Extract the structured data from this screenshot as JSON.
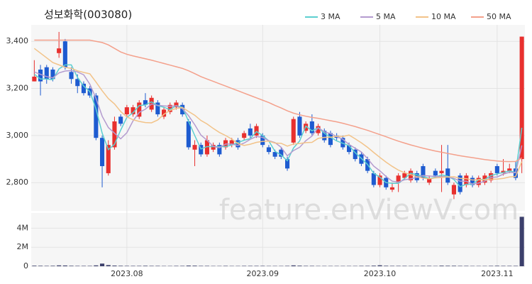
{
  "chart_data": [
    {
      "type": "candlestick",
      "title": "성보화학(003080)",
      "watermark": "feature.enViewV.com",
      "categories": [
        null,
        null,
        null,
        null,
        null,
        null,
        null,
        null,
        null,
        null,
        null,
        null,
        null,
        null,
        null,
        "2023.08",
        null,
        null,
        null,
        null,
        null,
        null,
        null,
        null,
        null,
        null,
        null,
        null,
        null,
        null,
        null,
        null,
        null,
        null,
        null,
        null,
        null,
        "2023.09",
        null,
        null,
        null,
        null,
        null,
        null,
        null,
        null,
        null,
        null,
        null,
        null,
        null,
        null,
        null,
        null,
        null,
        null,
        "2023.10",
        null,
        null,
        null,
        null,
        null,
        null,
        null,
        null,
        null,
        null,
        null,
        null,
        null,
        null,
        null,
        null,
        null,
        null,
        "2023.11",
        null,
        null,
        null,
        null
      ],
      "open": [
        3230,
        3280,
        3290,
        3280,
        3350,
        3400,
        3270,
        3240,
        3220,
        3200,
        3170,
        2990,
        2840,
        2950,
        3080,
        3090,
        3090,
        3080,
        3150,
        3110,
        3140,
        3080,
        3100,
        3120,
        3130,
        3060,
        2940,
        2960,
        2920,
        2940,
        2960,
        2950,
        2960,
        2980,
        2990,
        3030,
        3000,
        3000,
        2950,
        2930,
        2940,
        2900,
        2970,
        3080,
        3020,
        3060,
        3010,
        3020,
        3010,
        3000,
        2990,
        2960,
        2940,
        2920,
        2900,
        2840,
        2790,
        2820,
        2770,
        2800,
        2820,
        2810,
        2840,
        2870,
        2800,
        2850,
        2840,
        2860,
        2750,
        2830,
        2790,
        2820,
        2790,
        2800,
        2810,
        2870,
        2840,
        2850,
        2860,
        2900
      ],
      "high": [
        3320,
        3300,
        3300,
        3290,
        3440,
        3410,
        3290,
        3260,
        3230,
        3210,
        3180,
        3000,
        2980,
        3080,
        3090,
        3130,
        3130,
        3150,
        3180,
        3170,
        3150,
        3120,
        3140,
        3150,
        3140,
        3070,
        2980,
        2970,
        3000,
        2970,
        2970,
        2990,
        2990,
        2990,
        3020,
        3050,
        3050,
        3010,
        2960,
        2940,
        2950,
        2910,
        3080,
        3100,
        3060,
        3090,
        3050,
        3030,
        3020,
        3010,
        3000,
        2970,
        2950,
        2930,
        2910,
        2850,
        2840,
        2830,
        2800,
        2840,
        2850,
        2860,
        2850,
        2880,
        2830,
        2860,
        2960,
        2960,
        2800,
        2840,
        2840,
        2830,
        2830,
        2840,
        2850,
        2880,
        2900,
        2880,
        2890,
        3420
      ],
      "low": [
        3230,
        3170,
        3220,
        3230,
        3330,
        3280,
        3220,
        3180,
        3170,
        3160,
        2980,
        2780,
        2830,
        2940,
        3040,
        3080,
        3080,
        3070,
        3120,
        3100,
        3080,
        3070,
        3090,
        3110,
        3080,
        2940,
        2870,
        2910,
        2910,
        2930,
        2910,
        2940,
        2950,
        2940,
        2980,
        2990,
        2990,
        2950,
        2920,
        2900,
        2900,
        2850,
        2960,
        2990,
        3010,
        3000,
        3000,
        2970,
        2950,
        2980,
        2940,
        2920,
        2890,
        2870,
        2840,
        2780,
        2780,
        2770,
        2760,
        2760,
        2810,
        2800,
        2800,
        2810,
        2790,
        2820,
        2760,
        2790,
        2730,
        2750,
        2780,
        2780,
        2780,
        2790,
        2800,
        2830,
        2830,
        2840,
        2810,
        2840
      ],
      "close": [
        3250,
        3230,
        3240,
        3240,
        3370,
        3290,
        3240,
        3210,
        3180,
        3170,
        2990,
        2870,
        2960,
        3060,
        3050,
        3120,
        3120,
        3140,
        3130,
        3160,
        3090,
        3110,
        3130,
        3140,
        3090,
        2950,
        2960,
        2920,
        2980,
        2960,
        2920,
        2980,
        2980,
        2950,
        3010,
        3000,
        3040,
        2960,
        2930,
        2910,
        2910,
        2860,
        3070,
        3000,
        3050,
        3010,
        3040,
        2980,
        2960,
        2990,
        2950,
        2930,
        2900,
        2880,
        2850,
        2790,
        2830,
        2780,
        2780,
        2830,
        2840,
        2850,
        2810,
        2820,
        2820,
        2830,
        2850,
        2800,
        2790,
        2760,
        2830,
        2790,
        2820,
        2830,
        2840,
        2840,
        2850,
        2860,
        2820,
        3420
      ],
      "up_color": "#e8302e",
      "down_color": "#1e5bd0",
      "series": [
        {
          "name": "3 MA",
          "color": "#5ccfd0",
          "values": [
            3260,
            3240,
            3240,
            3237,
            3283,
            3300,
            3300,
            3247,
            3210,
            3187,
            3113,
            3010,
            2940,
            2963,
            3023,
            3077,
            3097,
            3127,
            3130,
            3143,
            3127,
            3120,
            3110,
            3127,
            3120,
            3060,
            3000,
            2943,
            2953,
            2953,
            2953,
            2953,
            2960,
            2970,
            2980,
            2987,
            3017,
            3000,
            2977,
            2933,
            2917,
            2893,
            2947,
            2977,
            3040,
            3020,
            3033,
            3010,
            2993,
            2977,
            2967,
            2957,
            2927,
            2903,
            2877,
            2840,
            2823,
            2800,
            2797,
            2797,
            2817,
            2840,
            2833,
            2827,
            2817,
            2823,
            2833,
            2827,
            2813,
            2783,
            2793,
            2793,
            2813,
            2813,
            2830,
            2837,
            2843,
            2850,
            2843,
            3033
          ]
        },
        {
          "name": "5 MA",
          "color": "#b49bcf",
          "values": [
            3270,
            3260,
            3250,
            3245,
            3266,
            3274,
            3276,
            3270,
            3258,
            3218,
            3158,
            3082,
            3034,
            3010,
            2986,
            3012,
            3062,
            3098,
            3112,
            3134,
            3128,
            3126,
            3124,
            3126,
            3114,
            3084,
            3046,
            3002,
            2980,
            2954,
            2948,
            2964,
            2964,
            2958,
            2968,
            2984,
            2996,
            2992,
            2978,
            2970,
            2950,
            2914,
            2936,
            2950,
            2978,
            2998,
            3034,
            3016,
            3008,
            2996,
            2984,
            2962,
            2946,
            2930,
            2902,
            2870,
            2850,
            2826,
            2806,
            2802,
            2812,
            2816,
            2822,
            2830,
            2828,
            2826,
            2826,
            2824,
            2818,
            2806,
            2806,
            2794,
            2798,
            2806,
            2822,
            2824,
            2836,
            2844,
            2842,
            2958
          ]
        },
        {
          "name": "10 MA",
          "color": "#f2c389",
          "values": [
            3370,
            3350,
            3330,
            3310,
            3300,
            3290,
            3285,
            3275,
            3268,
            3262,
            3227,
            3190,
            3157,
            3134,
            3102,
            3079,
            3067,
            3060,
            3055,
            3054,
            3066,
            3090,
            3107,
            3115,
            3119,
            3102,
            3086,
            3064,
            3049,
            3030,
            3013,
            3000,
            2985,
            2966,
            2958,
            2963,
            2971,
            2975,
            2976,
            2968,
            2967,
            2955,
            2964,
            2966,
            2970,
            2971,
            2988,
            2992,
            2993,
            2997,
            2996,
            3002,
            2986,
            2969,
            2950,
            2928,
            2907,
            2887,
            2869,
            2853,
            2842,
            2834,
            2825,
            2819,
            2816,
            2820,
            2822,
            2824,
            2825,
            2818,
            2817,
            2811,
            2812,
            2812,
            2814,
            2815,
            2818,
            2824,
            2826,
            2889
          ]
        },
        {
          "name": "50 MA",
          "color": "#f4a08b",
          "values": [
            3405,
            3405,
            3405,
            3405,
            3405,
            3405,
            3405,
            3405,
            3405,
            3405,
            3400,
            3395,
            3385,
            3370,
            3355,
            3345,
            3338,
            3332,
            3326,
            3320,
            3313,
            3306,
            3299,
            3292,
            3285,
            3275,
            3263,
            3250,
            3240,
            3230,
            3220,
            3210,
            3200,
            3190,
            3180,
            3170,
            3160,
            3150,
            3140,
            3128,
            3117,
            3105,
            3095,
            3088,
            3082,
            3077,
            3073,
            3068,
            3063,
            3058,
            3052,
            3045,
            3038,
            3030,
            3022,
            3013,
            3004,
            2995,
            2985,
            2976,
            2968,
            2960,
            2953,
            2946,
            2940,
            2934,
            2929,
            2924,
            2919,
            2914,
            2910,
            2906,
            2902,
            2898,
            2895,
            2892,
            2890,
            2889,
            2890,
            2905
          ]
        }
      ],
      "ylim": [
        2680,
        3470
      ],
      "yticks": [
        {
          "value": 2800,
          "label": "2,800"
        },
        {
          "value": 3000,
          "label": "3,000"
        },
        {
          "value": 3200,
          "label": "3,200"
        },
        {
          "value": 3400,
          "label": "3,400"
        }
      ],
      "grid": true,
      "legend": "top-right"
    },
    {
      "type": "bar",
      "color": "#3b3f6b",
      "values": [
        60000,
        50000,
        40000,
        50000,
        90000,
        80000,
        50000,
        40000,
        40000,
        40000,
        90000,
        280000,
        120000,
        70000,
        50000,
        40000,
        40000,
        40000,
        50000,
        40000,
        40000,
        30000,
        30000,
        40000,
        40000,
        70000,
        60000,
        40000,
        40000,
        30000,
        30000,
        40000,
        30000,
        30000,
        40000,
        40000,
        40000,
        40000,
        30000,
        30000,
        30000,
        40000,
        90000,
        60000,
        40000,
        40000,
        30000,
        30000,
        30000,
        30000,
        30000,
        30000,
        30000,
        40000,
        40000,
        60000,
        100000,
        50000,
        40000,
        40000,
        40000,
        30000,
        30000,
        40000,
        40000,
        30000,
        60000,
        50000,
        50000,
        40000,
        40000,
        30000,
        30000,
        30000,
        40000,
        50000,
        40000,
        40000,
        40000,
        5200000
      ],
      "ylim": [
        0,
        5600000
      ],
      "yticks": [
        0,
        {
          "value": 2000000,
          "label": "2M"
        },
        {
          "value": 4000000,
          "label": "4M"
        }
      ],
      "grid": true
    }
  ]
}
